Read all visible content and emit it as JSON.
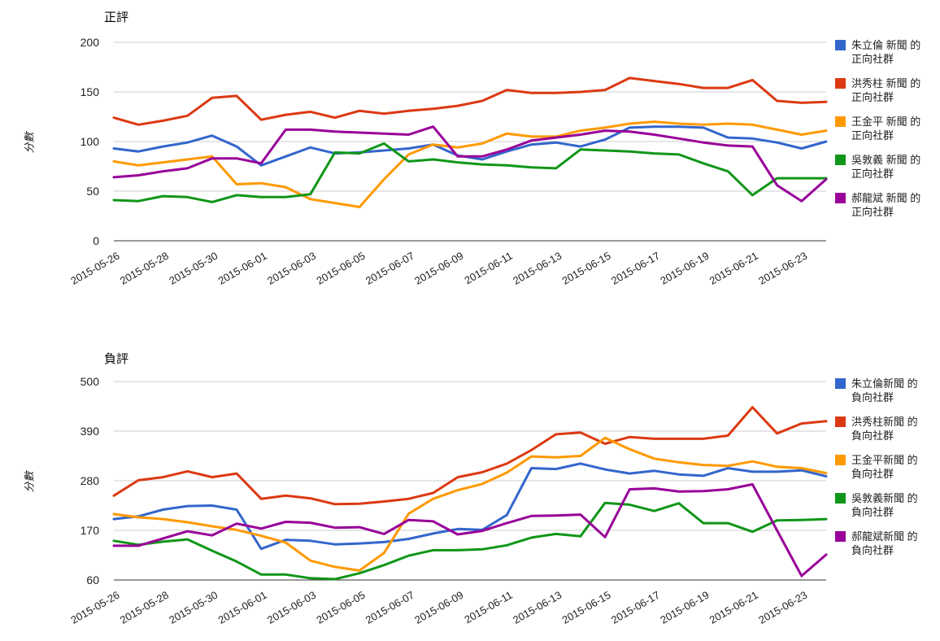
{
  "page": {
    "background": "#ffffff"
  },
  "palette": {
    "blue": "#3366cc",
    "red": "#dc3912",
    "orange": "#ff9900",
    "green": "#109618",
    "purple": "#990099"
  },
  "chart_data": [
    {
      "id": "positive",
      "type": "line",
      "title": "正評",
      "xlabel": "",
      "ylabel": "分數",
      "ylim": [
        0,
        200
      ],
      "y_ticks": [
        0,
        50,
        100,
        150,
        200
      ],
      "grid": true,
      "legend_position": "right",
      "x": [
        "2015-05-26",
        "2015-05-27",
        "2015-05-28",
        "2015-05-29",
        "2015-05-30",
        "2015-05-31",
        "2015-06-01",
        "2015-06-02",
        "2015-06-03",
        "2015-06-04",
        "2015-06-05",
        "2015-06-06",
        "2015-06-07",
        "2015-06-08",
        "2015-06-09",
        "2015-06-10",
        "2015-06-11",
        "2015-06-12",
        "2015-06-13",
        "2015-06-14",
        "2015-06-15",
        "2015-06-16",
        "2015-06-17",
        "2015-06-18",
        "2015-06-19",
        "2015-06-20",
        "2015-06-21",
        "2015-06-22",
        "2015-06-23",
        "2015-06-24"
      ],
      "x_tick_labels": [
        "2015-05-26",
        "2015-05-28",
        "2015-05-30",
        "2015-06-01",
        "2015-06-03",
        "2015-06-05",
        "2015-06-07",
        "2015-06-09",
        "2015-06-11",
        "2015-06-13",
        "2015-06-15",
        "2015-06-17",
        "2015-06-19",
        "2015-06-21",
        "2015-06-23"
      ],
      "series": [
        {
          "name": "朱立倫 新聞 的正向社群",
          "legend_lines": [
            "朱立倫 新聞 的",
            "正向社群"
          ],
          "color": "#3366cc",
          "values": [
            93,
            90,
            95,
            99,
            106,
            95,
            76,
            85,
            94,
            88,
            89,
            91,
            93,
            97,
            86,
            82,
            90,
            97,
            99,
            95,
            102,
            114,
            115,
            115,
            114,
            104,
            103,
            99,
            93,
            100
          ]
        },
        {
          "name": "洪秀柱 新聞 的正向社群",
          "legend_lines": [
            "洪秀柱 新聞 的",
            "正向社群"
          ],
          "color": "#dc3912",
          "values": [
            124,
            117,
            121,
            126,
            144,
            146,
            122,
            127,
            130,
            124,
            131,
            128,
            131,
            133,
            136,
            141,
            152,
            149,
            149,
            150,
            152,
            164,
            161,
            158,
            154,
            154,
            162,
            141,
            139,
            140
          ]
        },
        {
          "name": "王金平 新聞 的正向社群",
          "legend_lines": [
            "王金平 新聞 的",
            "正向社群"
          ],
          "color": "#ff9900",
          "values": [
            80,
            76,
            79,
            82,
            85,
            57,
            58,
            54,
            42,
            38,
            34,
            62,
            87,
            97,
            94,
            98,
            108,
            105,
            105,
            111,
            114,
            118,
            120,
            118,
            117,
            118,
            117,
            112,
            107,
            111
          ]
        },
        {
          "name": "吳敦義 新聞 的正向社群",
          "legend_lines": [
            "吳敦義 新聞 的",
            "正向社群"
          ],
          "color": "#109618",
          "values": [
            41,
            40,
            45,
            44,
            39,
            46,
            44,
            44,
            47,
            89,
            88,
            98,
            80,
            82,
            79,
            77,
            76,
            74,
            73,
            92,
            91,
            90,
            88,
            87,
            78,
            70,
            46,
            63,
            63,
            63
          ]
        },
        {
          "name": "郝龍斌 新聞 的正向社群",
          "legend_lines": [
            "郝龍斌 新聞 的",
            "正向社群"
          ],
          "color": "#990099",
          "values": [
            64,
            66,
            70,
            73,
            83,
            83,
            78,
            112,
            112,
            110,
            109,
            108,
            107,
            115,
            85,
            85,
            92,
            101,
            104,
            107,
            111,
            110,
            107,
            103,
            99,
            96,
            95,
            56,
            40,
            62
          ]
        }
      ]
    },
    {
      "id": "negative",
      "type": "line",
      "title": "負評",
      "xlabel": "",
      "ylabel": "分數",
      "ylim": [
        60,
        500
      ],
      "y_ticks": [
        60,
        170,
        280,
        390,
        500
      ],
      "grid": true,
      "legend_position": "right",
      "x": [
        "2015-05-26",
        "2015-05-27",
        "2015-05-28",
        "2015-05-29",
        "2015-05-30",
        "2015-05-31",
        "2015-06-01",
        "2015-06-02",
        "2015-06-03",
        "2015-06-04",
        "2015-06-05",
        "2015-06-06",
        "2015-06-07",
        "2015-06-08",
        "2015-06-09",
        "2015-06-10",
        "2015-06-11",
        "2015-06-12",
        "2015-06-13",
        "2015-06-14",
        "2015-06-15",
        "2015-06-16",
        "2015-06-17",
        "2015-06-18",
        "2015-06-19",
        "2015-06-20",
        "2015-06-21",
        "2015-06-22",
        "2015-06-23",
        "2015-06-24"
      ],
      "x_tick_labels": [
        "2015-05-26",
        "2015-05-28",
        "2015-05-30",
        "2015-06-01",
        "2015-06-03",
        "2015-06-05",
        "2015-06-07",
        "2015-06-09",
        "2015-06-11",
        "2015-06-13",
        "2015-06-15",
        "2015-06-17",
        "2015-06-19",
        "2015-06-21",
        "2015-06-23"
      ],
      "series": [
        {
          "name": "朱立倫新聞 的負向社群",
          "legend_lines": [
            "朱立倫新聞 的",
            "負向社群"
          ],
          "color": "#3366cc",
          "values": [
            195,
            201,
            216,
            224,
            225,
            216,
            129,
            149,
            147,
            139,
            141,
            144,
            151,
            163,
            173,
            171,
            204,
            308,
            306,
            318,
            305,
            296,
            302,
            294,
            291,
            308,
            300,
            300,
            303,
            290
          ]
        },
        {
          "name": "洪秀柱新聞 的負向社群",
          "legend_lines": [
            "洪秀柱新聞 的",
            "負向社群"
          ],
          "color": "#dc3912",
          "values": [
            247,
            281,
            288,
            301,
            288,
            296,
            240,
            247,
            241,
            228,
            229,
            234,
            240,
            253,
            288,
            299,
            318,
            348,
            383,
            387,
            362,
            377,
            373,
            373,
            373,
            380,
            443,
            385,
            407,
            412
          ]
        },
        {
          "name": "王金平新聞 的負向社群",
          "legend_lines": [
            "王金平新聞 的",
            "負向社群"
          ],
          "color": "#ff9900",
          "values": [
            206,
            199,
            195,
            188,
            179,
            171,
            158,
            143,
            103,
            89,
            81,
            120,
            207,
            240,
            259,
            273,
            298,
            334,
            332,
            335,
            375,
            350,
            329,
            321,
            315,
            313,
            323,
            311,
            308,
            297
          ]
        },
        {
          "name": "吳敦義新聞 的負向社群",
          "legend_lines": [
            "吳敦義新聞 的",
            "負向社群"
          ],
          "color": "#109618",
          "values": [
            147,
            138,
            145,
            150,
            125,
            101,
            72,
            72,
            64,
            62,
            75,
            93,
            114,
            126,
            126,
            128,
            137,
            154,
            162,
            157,
            231,
            227,
            213,
            230,
            186,
            186,
            167,
            192,
            193,
            195
          ]
        },
        {
          "name": "郝龍斌新聞 的負向社群",
          "legend_lines": [
            "郝龍斌新聞 的",
            "負向社群"
          ],
          "color": "#990099",
          "values": [
            136,
            136,
            152,
            168,
            159,
            185,
            174,
            189,
            187,
            176,
            177,
            162,
            193,
            190,
            161,
            169,
            186,
            202,
            203,
            205,
            155,
            261,
            263,
            256,
            257,
            261,
            272,
            170,
            69,
            116
          ]
        }
      ]
    }
  ]
}
